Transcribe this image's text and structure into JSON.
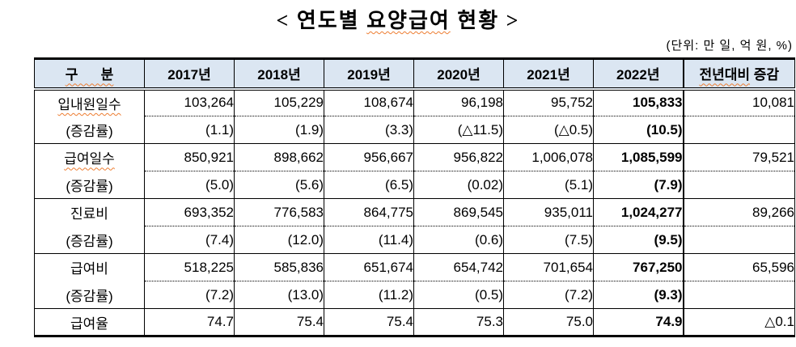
{
  "title": {
    "prefix": "< 연도별 ",
    "marked": "요양급여",
    "suffix": " 현황 >"
  },
  "unit_note": "(단위: 만 일, 억 원, %)",
  "colors": {
    "header_bg": "#dbe6f2",
    "squiggle": "#ed7d31",
    "border": "#000000"
  },
  "table": {
    "category_header": "구      분",
    "year_headers": [
      "2017년",
      "2018년",
      "2019년",
      "2020년",
      "2021년",
      "2022년"
    ],
    "change_header_marked": "전년대비",
    "change_header_rest": "증감",
    "bold_column_index": 5,
    "rows": [
      {
        "type": "value",
        "label": "입내원일수",
        "label_squiggle": true,
        "values": [
          "103,264",
          "105,229",
          "108,674",
          "96,198",
          "95,752",
          "105,833",
          "10,081"
        ]
      },
      {
        "type": "rate",
        "label": "(증감률)",
        "label_squiggle": false,
        "values": [
          "(1.1)",
          "(1.9)",
          "(3.3)",
          "(△11.5)",
          "(△0.5)",
          "(10.5)",
          ""
        ]
      },
      {
        "type": "value",
        "label": "급여일수",
        "label_squiggle": true,
        "values": [
          "850,921",
          "898,662",
          "956,667",
          "956,822",
          "1,006,078",
          "1,085,599",
          "79,521"
        ]
      },
      {
        "type": "rate",
        "label": "(증감률)",
        "label_squiggle": false,
        "values": [
          "(5.0)",
          "(5.6)",
          "(6.5)",
          "(0.02)",
          "(5.1)",
          "(7.9)",
          ""
        ]
      },
      {
        "type": "value",
        "label": "진료비",
        "label_squiggle": false,
        "values": [
          "693,352",
          "776,583",
          "864,775",
          "869,545",
          "935,011",
          "1,024,277",
          "89,266"
        ]
      },
      {
        "type": "rate",
        "label": "(증감률)",
        "label_squiggle": false,
        "values": [
          "(7.4)",
          "(12.0)",
          "(11.4)",
          "(0.6)",
          "(7.5)",
          "(9.5)",
          ""
        ]
      },
      {
        "type": "value",
        "label": "급여비",
        "label_squiggle": false,
        "values": [
          "518,225",
          "585,836",
          "651,674",
          "654,742",
          "701,654",
          "767,250",
          "65,596"
        ]
      },
      {
        "type": "rate",
        "label": "(증감률)",
        "label_squiggle": false,
        "values": [
          "(7.2)",
          "(13.0)",
          "(11.2)",
          "(0.5)",
          "(7.2)",
          "(9.3)",
          ""
        ]
      },
      {
        "type": "single",
        "label": "급여율",
        "label_squiggle": false,
        "values": [
          "74.7",
          "75.4",
          "75.4",
          "75.3",
          "75.0",
          "74.9",
          "△0.1"
        ]
      }
    ]
  }
}
